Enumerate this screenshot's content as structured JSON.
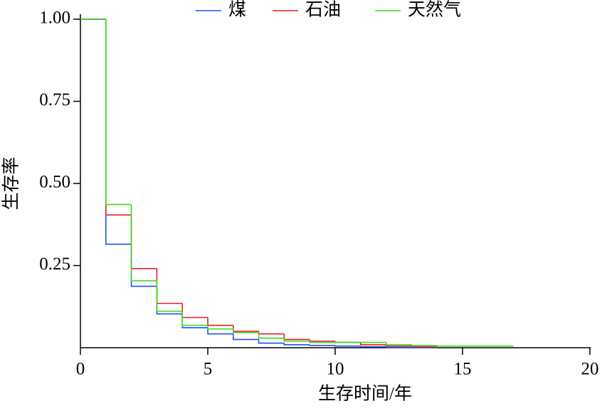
{
  "chart_data": {
    "type": "step",
    "x_label": "生存时间/年",
    "y_label": "生存率",
    "x": [
      0,
      1,
      2,
      3,
      4,
      5,
      6,
      7,
      8,
      9,
      10,
      11,
      12,
      13,
      14,
      15,
      16
    ],
    "series": [
      {
        "name": "煤",
        "color": "#1f4fff",
        "values": [
          1.0,
          0.315,
          0.187,
          0.103,
          0.061,
          0.042,
          0.025,
          0.014,
          0.009,
          0.007,
          0.005,
          0.003,
          0.001,
          0.001,
          null,
          null,
          null
        ]
      },
      {
        "name": "石油",
        "color": "#ee1c1c",
        "values": [
          1.0,
          0.404,
          0.241,
          0.135,
          0.092,
          0.068,
          0.05,
          0.042,
          0.025,
          0.02,
          0.016,
          0.009,
          0.005,
          0.003,
          null,
          null,
          null
        ]
      },
      {
        "name": "天然气",
        "color": "#33e01a",
        "values": [
          1.0,
          0.436,
          0.204,
          0.111,
          0.068,
          0.057,
          0.046,
          0.029,
          0.02,
          0.016,
          0.016,
          0.016,
          0.009,
          0.007,
          0.005,
          0.005,
          0.005
        ]
      }
    ],
    "xlim": [
      0,
      20
    ],
    "xticks": [
      0,
      5,
      10,
      15,
      20
    ],
    "ylim": [
      0,
      1
    ],
    "yticks": [
      0.25,
      {
        "value": 0.5,
        "label": "0.50"
      },
      0.75,
      {
        "value": 1,
        "label": "1.00"
      }
    ],
    "legend": "top"
  }
}
